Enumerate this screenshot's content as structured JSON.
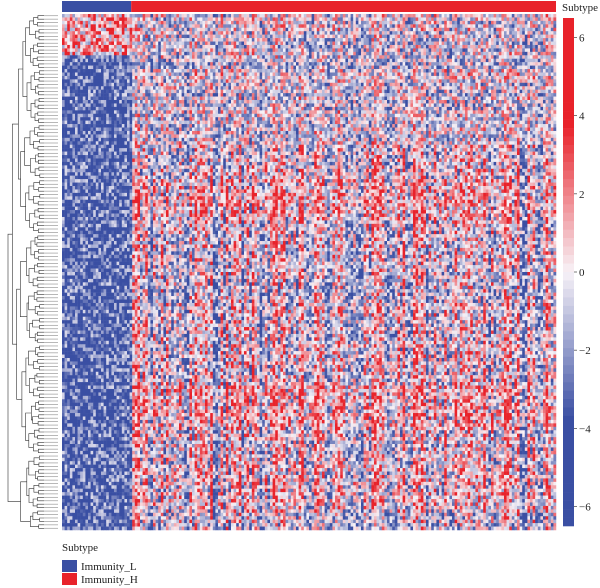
{
  "chart_data": {
    "type": "heatmap",
    "annotation_title": "Subtype",
    "colorbar_ticks": [
      6,
      4,
      2,
      0,
      -2,
      -4,
      -6
    ],
    "colorbar_tick_labels": [
      "6",
      "4",
      "2",
      "0",
      "−2",
      "−4",
      "−6"
    ],
    "value_range": [
      -6.5,
      6.5
    ],
    "palette": {
      "low": "#3a4fa3",
      "mid": "#f7f2f7",
      "high": "#e8222a"
    },
    "subtype_groups": [
      {
        "name": "Immunity_L",
        "color": "#3a4fa3",
        "fraction": 0.14
      },
      {
        "name": "Immunity_H",
        "color": "#e8222a",
        "fraction": 0.86
      }
    ],
    "legend": {
      "title": "Subtype",
      "items": [
        {
          "label": "Immunity_L",
          "color": "#3a4fa3"
        },
        {
          "label": "Immunity_H",
          "color": "#e8222a"
        }
      ]
    },
    "grid": false,
    "dendrogram": "rows"
  }
}
